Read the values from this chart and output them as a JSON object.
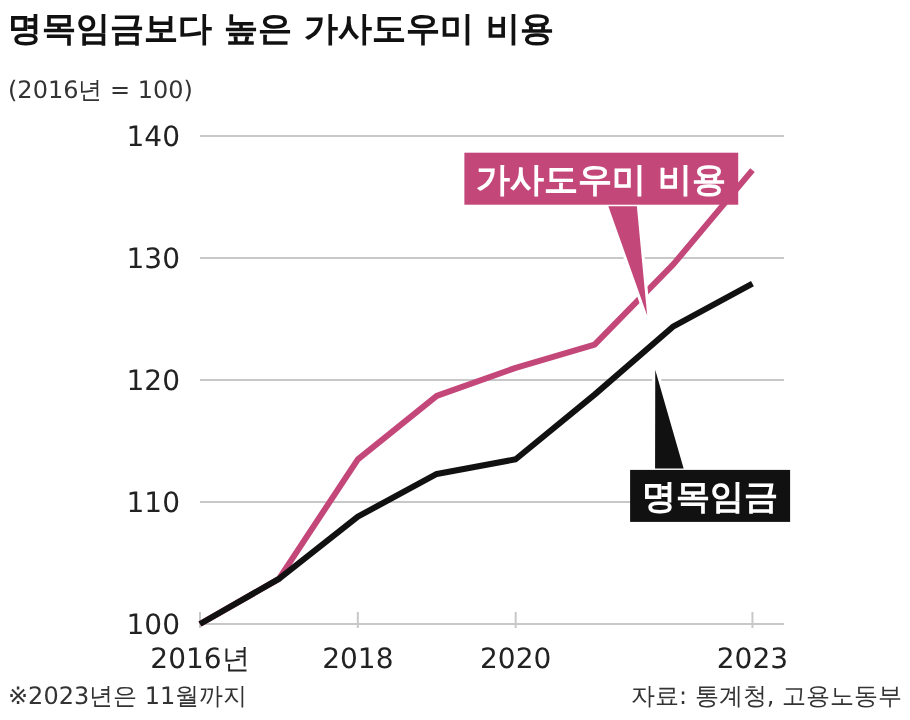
{
  "chart_data": {
    "type": "line",
    "title": "명목임금보다 높은 가사도우미 비용",
    "subtitle": "(2016년 = 100)",
    "x": [
      2016,
      2017,
      2018,
      2019,
      2020,
      2021,
      2022,
      2023
    ],
    "series": [
      {
        "name": "가사도우미 비용",
        "color": "#c4477a",
        "values": [
          100,
          103.7,
          113.5,
          118.7,
          121,
          122.9,
          129.5,
          137.2
        ]
      },
      {
        "name": "명목임금",
        "color": "#111111",
        "values": [
          100,
          103.7,
          108.8,
          112.3,
          113.5,
          118.8,
          124.4,
          127.9
        ]
      }
    ],
    "xlim": [
      2016,
      2023.4
    ],
    "ylim": [
      100,
      140
    ],
    "xticks": [
      {
        "value": 2016,
        "label": "2016년"
      },
      2018,
      2020,
      2023
    ],
    "yticks": [
      100,
      110,
      120,
      130,
      140
    ],
    "grid": "y",
    "marker": "none",
    "line_style": "solid",
    "annotations": [
      "※2023년은 11월까지",
      "자료: 통계청, 고용노동부"
    ]
  }
}
